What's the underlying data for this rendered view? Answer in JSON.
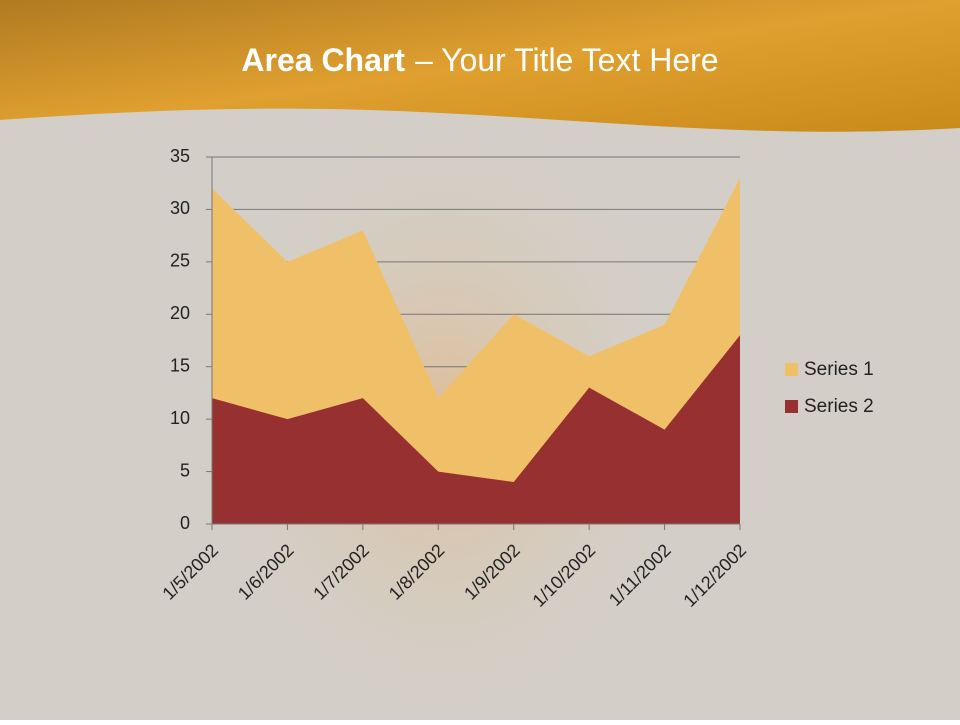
{
  "chart_data": {
    "type": "area",
    "title": "Area Chart",
    "subtitle": "– Your Title Text Here",
    "categories": [
      "1/5/2002",
      "1/6/2002",
      "1/7/2002",
      "1/8/2002",
      "1/9/2002",
      "1/10/2002",
      "1/11/2002",
      "1/12/2002"
    ],
    "series": [
      {
        "name": "Series 1",
        "color": "#f0c068",
        "values": [
          32,
          25,
          28,
          12,
          20,
          16,
          19,
          33
        ]
      },
      {
        "name": "Series 2",
        "color": "#973030",
        "values": [
          12,
          10,
          12,
          5,
          4,
          13,
          9,
          18
        ]
      }
    ],
    "ylim": [
      0,
      35
    ],
    "yticks": [
      0,
      5,
      10,
      15,
      20,
      25,
      30,
      35
    ],
    "grid": true,
    "legend": "right"
  }
}
